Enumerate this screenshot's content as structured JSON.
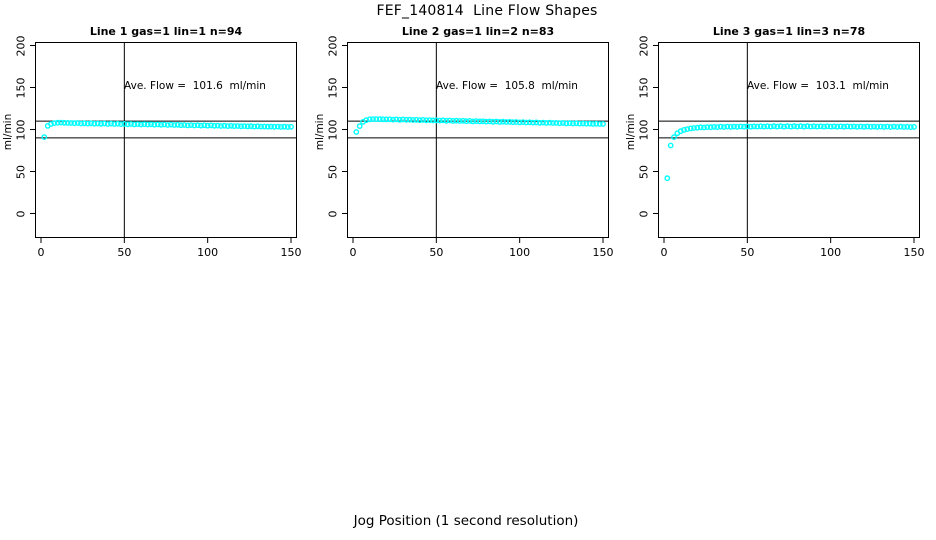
{
  "page": {
    "title": "FEF_140814  Line Flow Shapes",
    "xlabel": "Jog Position (1 second resolution)"
  },
  "chart_data": [
    {
      "type": "scatter",
      "title": "Line 1 gas=1 lin=1 n=94",
      "ylabel": "ml/min",
      "annotation": "Ave. Flow =  101.6  ml/min",
      "ave_flow_ml_min": 101.6,
      "n": 94,
      "xlim": [
        0,
        150
      ],
      "ylim": [
        0,
        200
      ],
      "x_ticks": [
        0,
        50,
        100,
        150
      ],
      "y_ticks": [
        0,
        50,
        100,
        150,
        200
      ],
      "hlines": [
        90,
        110
      ],
      "vline": 50,
      "point_color": "#00FFFF",
      "x_start": 2,
      "x_step": 2,
      "y": [
        91.0,
        104.3,
        106.6,
        107.6,
        108.1,
        108.2,
        108.0,
        107.9,
        107.7,
        107.5,
        107.7,
        107.2,
        107.4,
        107.0,
        107.4,
        106.9,
        107.2,
        106.8,
        107.1,
        106.6,
        107.0,
        106.5,
        106.9,
        106.4,
        106.7,
        106.2,
        106.6,
        106.1,
        106.4,
        106.0,
        106.3,
        105.9,
        106.2,
        105.7,
        106.1,
        105.6,
        105.9,
        105.4,
        105.8,
        105.3,
        105.6,
        105.1,
        105.4,
        104.9,
        105.2,
        104.8,
        105.1,
        104.7,
        105.0,
        104.5,
        104.9,
        104.4,
        104.7,
        104.2,
        104.5,
        104.1,
        104.4,
        104.0,
        104.2,
        103.8,
        104.1,
        103.7,
        103.9,
        103.5,
        103.8,
        103.4,
        103.6,
        103.3,
        103.5,
        103.2,
        103.4,
        103.1,
        103.3,
        103.0,
        103.2
      ]
    },
    {
      "type": "scatter",
      "title": "Line 2 gas=1 lin=2 n=83",
      "ylabel": "ml/min",
      "annotation": "Ave. Flow =  105.8  ml/min",
      "ave_flow_ml_min": 105.8,
      "n": 83,
      "xlim": [
        0,
        150
      ],
      "ylim": [
        0,
        200
      ],
      "x_ticks": [
        0,
        50,
        100,
        150
      ],
      "y_ticks": [
        0,
        50,
        100,
        150,
        200
      ],
      "hlines": [
        90,
        110
      ],
      "vline": 50,
      "point_color": "#00FFFF",
      "x_start": 2,
      "x_step": 2,
      "y": [
        97.0,
        104.0,
        109.0,
        111.2,
        112.1,
        112.4,
        112.4,
        112.3,
        112.2,
        112.0,
        112.2,
        111.8,
        112.0,
        111.6,
        111.9,
        111.5,
        111.7,
        111.3,
        111.6,
        111.1,
        111.4,
        110.9,
        111.2,
        110.8,
        111.0,
        110.6,
        110.9,
        110.4,
        110.7,
        110.2,
        110.5,
        110.1,
        110.3,
        109.9,
        110.2,
        109.7,
        110.0,
        109.6,
        109.8,
        109.4,
        109.6,
        109.2,
        109.5,
        109.0,
        109.3,
        108.9,
        109.1,
        108.7,
        108.9,
        108.5,
        108.8,
        108.3,
        108.6,
        108.2,
        108.4,
        108.0,
        108.2,
        107.8,
        108.1,
        107.7,
        107.9,
        107.5,
        107.7,
        107.3,
        107.5,
        107.2,
        107.4,
        107.0,
        107.2,
        106.9,
        107.0,
        106.7,
        106.9,
        106.6,
        106.7
      ]
    },
    {
      "type": "scatter",
      "title": "Line 3 gas=1 lin=3 n=78",
      "ylabel": "ml/min",
      "annotation": "Ave. Flow =  103.1  ml/min",
      "ave_flow_ml_min": 103.1,
      "n": 78,
      "xlim": [
        0,
        150
      ],
      "ylim": [
        0,
        200
      ],
      "x_ticks": [
        0,
        50,
        100,
        150
      ],
      "y_ticks": [
        0,
        50,
        100,
        150,
        200
      ],
      "hlines": [
        90,
        110
      ],
      "vline": 50,
      "point_color": "#00FFFF",
      "x_start": 2,
      "x_step": 2,
      "y": [
        42.0,
        81.0,
        91.0,
        95.5,
        98.0,
        99.5,
        100.5,
        101.3,
        101.8,
        102.2,
        102.6,
        102.4,
        102.9,
        102.7,
        103.1,
        102.9,
        103.3,
        103.0,
        103.4,
        103.1,
        103.5,
        103.2,
        103.6,
        103.3,
        103.7,
        103.3,
        103.7,
        103.4,
        103.8,
        103.4,
        103.8,
        103.5,
        103.9,
        103.5,
        103.9,
        103.5,
        103.9,
        103.5,
        103.9,
        103.5,
        103.9,
        103.5,
        103.9,
        103.5,
        103.8,
        103.4,
        103.8,
        103.4,
        103.8,
        103.4,
        103.7,
        103.3,
        103.7,
        103.3,
        103.7,
        103.3,
        103.6,
        103.2,
        103.6,
        103.2,
        103.6,
        103.2,
        103.5,
        103.1,
        103.5,
        103.1,
        103.4,
        103.0,
        103.4,
        103.0,
        103.3,
        103.0,
        103.2,
        102.9,
        103.1
      ]
    }
  ],
  "style": {
    "axis_color": "#000000",
    "point_color": "#00FFFF",
    "background": "#ffffff"
  }
}
